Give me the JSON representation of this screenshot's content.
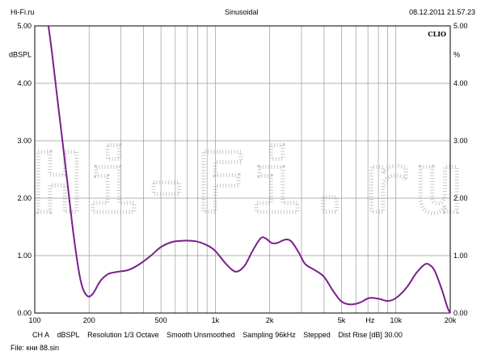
{
  "header": {
    "left": "Hi-Fi.ru",
    "center": "Sinusoidal",
    "right": "08.12.2011 21.57.23"
  },
  "colors": {
    "curve": "#7a1f8c",
    "grid": "#9a9a9a",
    "watermark": "#c8c8c8",
    "background": "#ffffff"
  },
  "chart_data": {
    "type": "line",
    "brand_label": "CLIO",
    "watermark": "Hi-Fi.ru",
    "y_left_unit": "dBSPL",
    "y_right_unit": "%",
    "x_scale": "log",
    "xlim": [
      100,
      20000
    ],
    "ylim": [
      0,
      5
    ],
    "y_ticks": [
      "5.00",
      "4.00",
      "3.00",
      "2.00",
      "1.00",
      "0.00"
    ],
    "y_tick_values": [
      5,
      4,
      3,
      2,
      1,
      0
    ],
    "x_tick_labels": [
      {
        "value": 100,
        "label": "100"
      },
      {
        "value": 200,
        "label": "200"
      },
      {
        "value": 500,
        "label": "500"
      },
      {
        "value": 1000,
        "label": "1k"
      },
      {
        "value": 2000,
        "label": "2k"
      },
      {
        "value": 5000,
        "label": "5k"
      },
      {
        "value": 10000,
        "label": "10k"
      },
      {
        "value": 20000,
        "label": "20k"
      }
    ],
    "x_axis_unit": "Hz",
    "x_gridlines": [
      200,
      300,
      400,
      500,
      600,
      700,
      800,
      900,
      1000,
      2000,
      3000,
      4000,
      5000,
      6000,
      7000,
      8000,
      9000,
      10000
    ],
    "series": [
      {
        "points": [
          [
            119,
            5.0
          ],
          [
            125,
            4.5
          ],
          [
            135,
            3.6
          ],
          [
            150,
            2.4
          ],
          [
            165,
            1.3
          ],
          [
            180,
            0.55
          ],
          [
            195,
            0.3
          ],
          [
            210,
            0.34
          ],
          [
            230,
            0.55
          ],
          [
            255,
            0.68
          ],
          [
            290,
            0.72
          ],
          [
            330,
            0.75
          ],
          [
            380,
            0.85
          ],
          [
            440,
            1.0
          ],
          [
            500,
            1.15
          ],
          [
            580,
            1.24
          ],
          [
            680,
            1.26
          ],
          [
            780,
            1.25
          ],
          [
            900,
            1.18
          ],
          [
            1000,
            1.08
          ],
          [
            1150,
            0.85
          ],
          [
            1300,
            0.72
          ],
          [
            1450,
            0.82
          ],
          [
            1600,
            1.07
          ],
          [
            1780,
            1.3
          ],
          [
            1900,
            1.3
          ],
          [
            2050,
            1.22
          ],
          [
            2200,
            1.22
          ],
          [
            2450,
            1.28
          ],
          [
            2650,
            1.24
          ],
          [
            2900,
            1.05
          ],
          [
            3150,
            0.85
          ],
          [
            3550,
            0.75
          ],
          [
            4000,
            0.63
          ],
          [
            4500,
            0.38
          ],
          [
            5000,
            0.2
          ],
          [
            5600,
            0.15
          ],
          [
            6300,
            0.18
          ],
          [
            7100,
            0.26
          ],
          [
            8000,
            0.25
          ],
          [
            9000,
            0.21
          ],
          [
            10000,
            0.26
          ],
          [
            11500,
            0.45
          ],
          [
            13000,
            0.7
          ],
          [
            14500,
            0.85
          ],
          [
            15500,
            0.83
          ],
          [
            16500,
            0.72
          ],
          [
            18000,
            0.4
          ],
          [
            19300,
            0.1
          ],
          [
            20000,
            0.0
          ]
        ]
      }
    ]
  },
  "footer": {
    "channel": "CH A",
    "unit": "dBSPL",
    "resolution": "Resolution 1/3 Octave",
    "smooth": "Smooth Unsmoothed",
    "sampling": "Sampling 96kHz",
    "mode": "Stepped",
    "dist_rise": "Dist Rise [dB] 30.00"
  },
  "file": "File: кни 88.sin"
}
